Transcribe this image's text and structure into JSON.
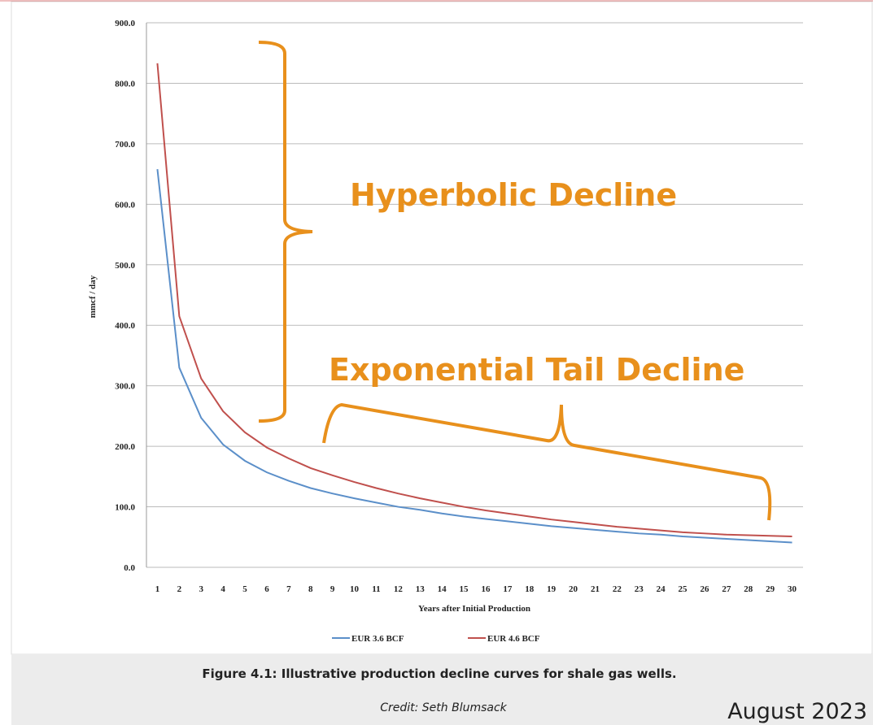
{
  "chart_data": {
    "type": "line",
    "y_label": "mmcf / day",
    "x_label": "Years after Initial Production",
    "categories": [
      1,
      2,
      3,
      4,
      5,
      6,
      7,
      8,
      9,
      10,
      11,
      12,
      13,
      14,
      15,
      16,
      17,
      18,
      19,
      20,
      21,
      22,
      23,
      24,
      25,
      26,
      27,
      28,
      29,
      30
    ],
    "series": [
      {
        "name": "EUR 3.6 BCF",
        "color": "#5b8fc9",
        "values": [
          658,
          330,
          247,
          203,
          176,
          157,
          143,
          131,
          122,
          114,
          107,
          100,
          95,
          89,
          84,
          80,
          76,
          72,
          68,
          65,
          62,
          59,
          56,
          54,
          51,
          49,
          47,
          45,
          43,
          41
        ]
      },
      {
        "name": "EUR 4.6 BCF",
        "color": "#c0504d",
        "values": [
          833,
          415,
          312,
          258,
          223,
          198,
          180,
          164,
          152,
          141,
          131,
          122,
          114,
          107,
          100,
          94,
          89,
          84,
          79,
          75,
          71,
          67,
          64,
          61,
          58,
          56,
          54,
          53,
          52,
          51
        ]
      }
    ],
    "ylim": [
      0,
      900
    ],
    "yticks": [
      {
        "value": 0,
        "label": "0.0"
      },
      {
        "value": 100,
        "label": "100.0"
      },
      {
        "value": 200,
        "label": "200.0"
      },
      {
        "value": 300,
        "label": "300.0"
      },
      {
        "value": 400,
        "label": "400.0"
      },
      {
        "value": 500,
        "label": "500.0"
      },
      {
        "value": 600,
        "label": "600.0"
      },
      {
        "value": 700,
        "label": "700.0"
      },
      {
        "value": 800,
        "label": "800.0"
      },
      {
        "value": 900,
        "label": "900.0"
      }
    ],
    "grid": true,
    "legend": "bottom",
    "annotations": [
      "Hyperbolic Decline",
      "Exponential Tail Decline"
    ]
  },
  "caption": "Figure 4.1: Illustrative production decline curves for shale gas wells.",
  "credit": "Credit: Seth Blumsack",
  "date": "August 2023"
}
